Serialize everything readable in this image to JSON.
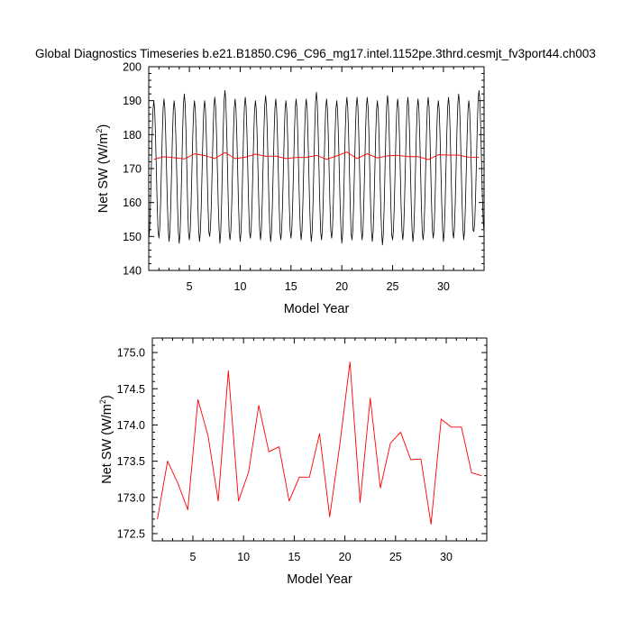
{
  "title": "Global Diagnostics Timeseries b.e21.B1850.C96_C96_mg17.intel.1152pe.3thrd.cesmjt_fv3port44.ch003",
  "colors": {
    "monthly": "#000000",
    "annual": "#ff0000",
    "axis": "#000000"
  },
  "chart_data": [
    {
      "type": "line",
      "xlabel": "Model Year",
      "ylabel_main": "Net SW (W/m",
      "ylabel_sup": "2",
      "ylabel_end": ")",
      "xlim": [
        1,
        34
      ],
      "ylim": [
        140,
        200
      ],
      "xticks": [
        5,
        10,
        15,
        20,
        25,
        30
      ],
      "xtick_labels": [
        "5",
        "10",
        "15",
        "20",
        "25",
        "30"
      ],
      "yticks": [
        140,
        150,
        160,
        170,
        180,
        190,
        200
      ],
      "ytick_labels": [
        "140",
        "150",
        "160",
        "170",
        "180",
        "190",
        "200"
      ],
      "series": [
        {
          "kind": "monthly",
          "color": "#000000",
          "years": 33,
          "monthly_min": [
            149,
            149.5,
            148.5,
            148,
            149,
            148.5,
            150,
            148,
            149,
            148.5,
            149.5,
            149,
            148.5,
            149,
            149.5,
            149,
            148.5,
            149,
            149.5,
            148,
            149,
            149,
            148.5,
            147.5,
            149,
            149,
            148.5,
            149,
            149.5,
            148.5,
            149.5,
            149,
            151.5
          ],
          "monthly_max": [
            190,
            190.5,
            190,
            192,
            190,
            190,
            191,
            193,
            190.5,
            191,
            190,
            191.5,
            190.5,
            190,
            190.5,
            190.5,
            192.5,
            190.5,
            190,
            191,
            191,
            191,
            190,
            191.5,
            190.5,
            191,
            190.5,
            191,
            190,
            191,
            192,
            190,
            193
          ]
        },
        {
          "kind": "annual",
          "color": "#ff0000",
          "x": [
            1.5,
            2.5,
            3.5,
            4.5,
            5.5,
            6.5,
            7.5,
            8.5,
            9.5,
            10.5,
            11.5,
            12.5,
            13.5,
            14.5,
            15.5,
            16.5,
            17.5,
            18.5,
            19.5,
            20.5,
            21.5,
            22.5,
            23.5,
            24.5,
            25.5,
            26.5,
            27.5,
            28.5,
            29.5,
            30.5,
            31.5,
            32.5,
            33.5
          ],
          "y": [
            172.7,
            173.5,
            173.2,
            172.83,
            174.35,
            173.85,
            172.95,
            174.75,
            172.95,
            173.35,
            174.27,
            173.63,
            173.7,
            172.95,
            173.28,
            173.28,
            173.88,
            172.73,
            173.73,
            174.87,
            172.93,
            174.37,
            173.13,
            173.75,
            173.9,
            173.52,
            173.53,
            172.63,
            174.08,
            173.97,
            173.97,
            173.34,
            173.3
          ]
        }
      ]
    },
    {
      "type": "line",
      "xlabel": "Model Year",
      "ylabel_main": "Net SW (W/m",
      "ylabel_sup": "2",
      "ylabel_end": ")",
      "xlim": [
        1,
        34
      ],
      "ylim": [
        172.4,
        175.2
      ],
      "xticks": [
        5,
        10,
        15,
        20,
        25,
        30
      ],
      "xtick_labels": [
        "5",
        "10",
        "15",
        "20",
        "25",
        "30"
      ],
      "yticks": [
        172.5,
        173.0,
        173.5,
        174.0,
        174.5,
        175.0
      ],
      "ytick_labels": [
        "172.5",
        "173.0",
        "173.5",
        "174.0",
        "174.5",
        "175.0"
      ],
      "series": [
        {
          "kind": "annual",
          "color": "#ff0000",
          "x": [
            1.5,
            2.5,
            3.5,
            4.5,
            5.5,
            6.5,
            7.5,
            8.5,
            9.5,
            10.5,
            11.5,
            12.5,
            13.5,
            14.5,
            15.5,
            16.5,
            17.5,
            18.5,
            19.5,
            20.5,
            21.5,
            22.5,
            23.5,
            24.5,
            25.5,
            26.5,
            27.5,
            28.5,
            29.5,
            30.5,
            31.5,
            32.5,
            33.5
          ],
          "y": [
            172.7,
            173.5,
            173.2,
            172.83,
            174.35,
            173.85,
            172.95,
            174.75,
            172.95,
            173.35,
            174.27,
            173.63,
            173.7,
            172.95,
            173.28,
            173.28,
            173.88,
            172.73,
            173.73,
            174.87,
            172.93,
            174.37,
            173.13,
            173.75,
            173.9,
            173.52,
            173.53,
            172.63,
            174.08,
            173.97,
            173.97,
            173.34,
            173.3
          ]
        }
      ]
    }
  ]
}
